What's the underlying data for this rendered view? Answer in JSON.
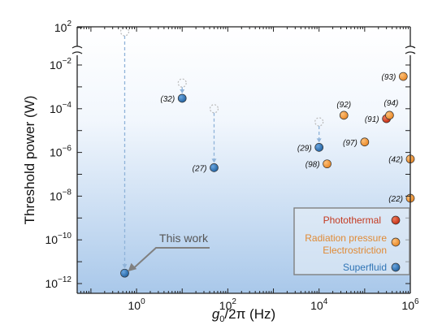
{
  "chart_data": {
    "type": "scatter",
    "xlabel_main": "g",
    "xlabel_sub": "0",
    "xlabel_rest": "/2π (Hz)",
    "ylabel": "Threshold power (W)",
    "x_scale": "log",
    "y_scale": "log",
    "xlim": [
      0.05,
      1000000
    ],
    "ylim": [
      1e-12,
      0.01
    ],
    "y_break_top_tick": 100,
    "grid": false,
    "legend_position": "bottom-right",
    "x_ticks": [
      {
        "value": 1,
        "base": "10",
        "exp": "0"
      },
      {
        "value": 100,
        "base": "10",
        "exp": "2"
      },
      {
        "value": 10000,
        "base": "10",
        "exp": "4"
      },
      {
        "value": 1000000,
        "base": "10",
        "exp": "6"
      }
    ],
    "y_ticks": [
      {
        "value": 1e-12,
        "base": "10",
        "exp": "−12"
      },
      {
        "value": 1e-10,
        "base": "10",
        "exp": "−10"
      },
      {
        "value": 1e-08,
        "base": "10",
        "exp": "−8"
      },
      {
        "value": 1e-06,
        "base": "10",
        "exp": "−6"
      },
      {
        "value": 0.0001,
        "base": "10",
        "exp": "−4"
      },
      {
        "value": 0.01,
        "base": "10",
        "exp": "−2"
      }
    ],
    "y_top_tick": {
      "base": "10",
      "exp": "2"
    },
    "colors": {
      "photothermal": "#d23a1e",
      "radiation": "#f29a3c",
      "superfluid": "#2f74b5",
      "axis": "#222222",
      "dashed": "#8fb3d9",
      "arrow": "#808080",
      "legend_border": "#808080"
    },
    "series": [
      {
        "name": "Photothermal",
        "category": "photothermal",
        "points": [
          {
            "x": 300000,
            "y": 3.5e-05,
            "label": "(91)",
            "label_pos": "left"
          }
        ]
      },
      {
        "name": "Radiation pressure Electrostriction",
        "category": "radiation",
        "points": [
          {
            "x": 700000,
            "y": 0.003,
            "label": "(93)",
            "label_pos": "left"
          },
          {
            "x": 35000,
            "y": 5e-05,
            "label": "(92)",
            "label_pos": "above"
          },
          {
            "x": 350000,
            "y": 5e-05,
            "label": "(94)",
            "label_pos": "above-right"
          },
          {
            "x": 100000,
            "y": 3e-06,
            "label": "(97)",
            "label_pos": "left"
          },
          {
            "x": 15000,
            "y": 3e-07,
            "label": "(98)",
            "label_pos": "left"
          },
          {
            "x": 1000000,
            "y": 5e-07,
            "label": "(42)",
            "label_pos": "left"
          },
          {
            "x": 1000000,
            "y": 8e-09,
            "label": "(22)",
            "label_pos": "left"
          }
        ]
      },
      {
        "name": "Superfluid",
        "category": "superfluid",
        "points": [
          {
            "x": 10,
            "y": 0.0003,
            "label": "(32)",
            "label_pos": "left",
            "projected_y": 0.0015
          },
          {
            "x": 50,
            "y": 2e-07,
            "label": "(27)",
            "label_pos": "left",
            "projected_y": 0.0001
          },
          {
            "x": 10000,
            "y": 1.7e-06,
            "label": "(29)",
            "label_pos": "left",
            "projected_y": 2.5e-05
          },
          {
            "x": 0.55,
            "y": 3e-12,
            "label": "",
            "label_pos": "none",
            "projected_y": 100
          }
        ]
      }
    ],
    "annotation": {
      "text": "This work",
      "target_x": 0.55,
      "target_y": 3e-12
    },
    "legend": [
      {
        "line1": "Photothermal",
        "line2": "",
        "category": "photothermal"
      },
      {
        "line1": "Radiation pressure",
        "line2": "Electrostriction",
        "category": "radiation"
      },
      {
        "line1": "Superfluid",
        "line2": "",
        "category": "superfluid"
      }
    ]
  }
}
